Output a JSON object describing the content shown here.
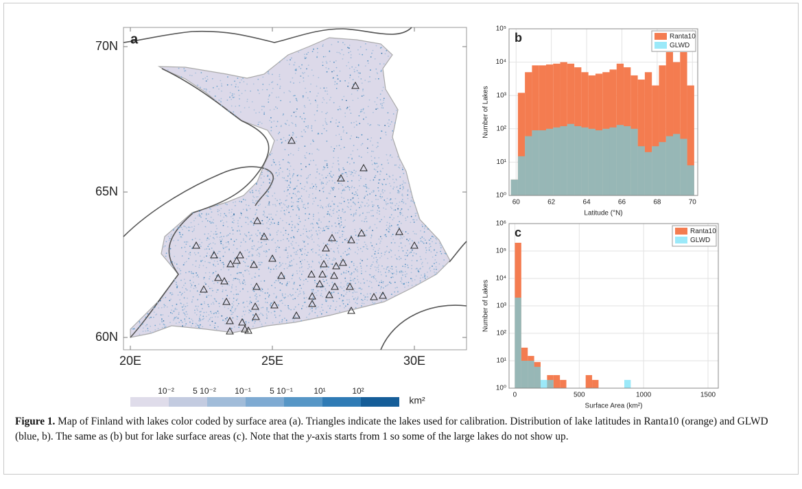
{
  "map": {
    "panel_label": "a",
    "lat_ticks": [
      {
        "value": 70,
        "label": "70N"
      },
      {
        "value": 65,
        "label": "65N"
      },
      {
        "value": 60,
        "label": "60N"
      }
    ],
    "lon_ticks": [
      {
        "value": 20,
        "label": "20E"
      },
      {
        "value": 25,
        "label": "25E"
      },
      {
        "value": 30,
        "label": "30E"
      }
    ],
    "colorbar": {
      "labels": [
        "10⁻²",
        "5 10⁻²",
        "10⁻¹",
        "5 10⁻¹",
        "10¹",
        "10²"
      ],
      "colors": [
        "#dfdcea",
        "#c3cbe0",
        "#a1bcd9",
        "#7eaad2",
        "#5696c6",
        "#2f7bb5",
        "#155d98"
      ],
      "unit": "km²"
    }
  },
  "chart_data": [
    {
      "type": "histogram",
      "panel_label": "b",
      "xlabel": "Latitude (°N)",
      "ylabel": "Number of Lakes",
      "bins": [
        59.7,
        60.1,
        60.5,
        60.9,
        61.3,
        61.7,
        62.1,
        62.5,
        62.9,
        63.3,
        63.7,
        64.1,
        64.5,
        64.9,
        65.3,
        65.7,
        66.1,
        66.5,
        66.9,
        67.3,
        67.7,
        68.1,
        68.5,
        68.9,
        69.3,
        69.7,
        70.1
      ],
      "series": [
        {
          "name": "Ranta10",
          "color": "#f47c50",
          "values": [
            3,
            1200,
            5000,
            8000,
            8000,
            8500,
            9000,
            10000,
            9000,
            7000,
            5000,
            4000,
            4500,
            5000,
            6000,
            9000,
            7000,
            4000,
            3000,
            5000,
            2000,
            8000,
            20000,
            10000,
            20000,
            2000
          ]
        },
        {
          "name": "GLWD",
          "color": "#5ddcf6",
          "values": [
            3,
            15,
            60,
            90,
            90,
            100,
            110,
            120,
            140,
            120,
            110,
            100,
            90,
            100,
            110,
            130,
            120,
            100,
            30,
            20,
            30,
            40,
            60,
            70,
            50,
            8
          ]
        }
      ],
      "xlim": [
        59.6,
        70.3
      ],
      "ylim": [
        1,
        100000
      ],
      "log_y": true,
      "xticks": [
        60,
        62,
        64,
        66,
        68,
        70
      ],
      "yticks": [
        {
          "value": 1,
          "label": "10⁰"
        },
        {
          "value": 10,
          "label": "10¹"
        },
        {
          "value": 100,
          "label": "10²"
        },
        {
          "value": 1000,
          "label": "10³"
        },
        {
          "value": 10000,
          "label": "10⁴"
        },
        {
          "value": 100000,
          "label": "10⁵"
        }
      ],
      "legend": "upper right",
      "grid": true
    },
    {
      "type": "histogram",
      "panel_label": "c",
      "xlabel": "Surface Area (km²)",
      "ylabel": "Number of Lakes",
      "bins": [
        0,
        50,
        100,
        150,
        200,
        250,
        300,
        350,
        400,
        450,
        500,
        550,
        600,
        650,
        700,
        750,
        800,
        850,
        900,
        950,
        1000,
        1050,
        1100,
        1150,
        1200,
        1250,
        1300,
        1350,
        1400,
        1450,
        1500
      ],
      "series": [
        {
          "name": "Ranta10",
          "color": "#f47c50",
          "values": [
            200000,
            30,
            15,
            9,
            1,
            3,
            3,
            2,
            0,
            0,
            0,
            3,
            2,
            0,
            0,
            0,
            0,
            0,
            0,
            0,
            0,
            0,
            0,
            0,
            0,
            0,
            0,
            0,
            0,
            0
          ]
        },
        {
          "name": "GLWD",
          "color": "#5ddcf6",
          "values": [
            2000,
            10,
            10,
            6,
            2,
            2,
            0,
            0,
            0,
            0,
            0,
            0,
            0,
            0,
            0,
            0,
            0,
            2,
            0,
            0,
            0,
            0,
            0,
            0,
            0,
            0,
            0,
            0,
            0,
            0
          ]
        }
      ],
      "xlim": [
        -45,
        1580
      ],
      "ylim": [
        1,
        1000000
      ],
      "log_y": true,
      "xticks": [
        0,
        500,
        1000,
        1500
      ],
      "yticks": [
        {
          "value": 1,
          "label": "10⁰"
        },
        {
          "value": 10,
          "label": "10¹"
        },
        {
          "value": 100,
          "label": "10²"
        },
        {
          "value": 1000,
          "label": "10³"
        },
        {
          "value": 10000,
          "label": "10⁴"
        },
        {
          "value": 100000,
          "label": "10⁵"
        },
        {
          "value": 1000000,
          "label": "10⁶"
        }
      ],
      "legend": "upper right",
      "grid": true
    }
  ],
  "caption": {
    "label": "Figure 1.",
    "text": " Map of Finland with lakes color coded by surface area (a). Triangles indicate the lakes used for calibration. Distribution of lake latitudes in Ranta10 (orange) and GLWD (blue, b). The same as (b) but for lake surface areas (c). Note that the ",
    "italic": "y",
    "text_end": "-axis starts from 1 so some of the large lakes do not show up."
  }
}
